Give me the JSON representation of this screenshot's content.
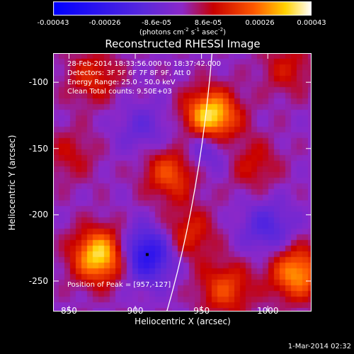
{
  "colorbar": {
    "ticks": [
      "-0.00043",
      "-0.00026",
      "-8.6e-05",
      "8.6e-05",
      "0.00026",
      "0.00043"
    ],
    "units_prefix": "(photons cm",
    "units_exp1": "-2",
    "units_mid": " s",
    "units_exp2": "-1",
    "units_mid2": " asec",
    "units_exp3": "-2",
    "units_suffix": ")",
    "range": [
      -0.00043,
      0.00043
    ]
  },
  "chart_data": {
    "type": "heatmap",
    "title": "Reconstructed RHESSI Image",
    "xlabel": "Heliocentric X (arcsec)",
    "ylabel": "Heliocentric Y (arcsec)",
    "xlim": [
      838,
      1033
    ],
    "ylim": [
      -273,
      -78
    ],
    "xticks": [
      "850",
      "900",
      "950",
      "1000"
    ],
    "yticks": [
      "-100",
      "-150",
      "-200",
      "-250"
    ],
    "xtick_values": [
      850,
      900,
      950,
      1000
    ],
    "ytick_values": [
      -100,
      -150,
      -200,
      -250
    ],
    "colormap": "blue-purple-red-yellow-white",
    "sources": [
      {
        "x": 957,
        "y": -127,
        "peak": 0.00043
      },
      {
        "x": 873,
        "y": -231,
        "peak": 0.00038
      },
      {
        "x": 927,
        "y": -168,
        "peak": 0.00022
      },
      {
        "x": 1022,
        "y": -244,
        "peak": 0.0003
      },
      {
        "x": 968,
        "y": -256,
        "peak": 0.0002
      },
      {
        "x": 868,
        "y": -96,
        "peak": 0.00015
      },
      {
        "x": 989,
        "y": -162,
        "peak": 0.00012
      },
      {
        "x": 940,
        "y": -215,
        "peak": 0.00016
      },
      {
        "x": 1015,
        "y": -90,
        "peak": 0.00012
      },
      {
        "x": 851,
        "y": -155,
        "peak": 0.0001
      },
      {
        "x": 909,
        "y": -230,
        "peak": -0.0003
      },
      {
        "x": 953,
        "y": -147,
        "peak": -0.00018
      },
      {
        "x": 1000,
        "y": -210,
        "peak": -0.00015
      },
      {
        "x": 906,
        "y": -135,
        "peak": -0.0001
      }
    ],
    "limb_marker": {
      "x": 909,
      "y": -230
    }
  },
  "annotations": {
    "time": "28-Feb-2014 18:33:56.000 to 18:37:42.000",
    "detectors": "Detectors: 3F 5F 6F 7F 8F 9F, Att 0",
    "energy": "Energy Range: 25.0 - 50.0 keV",
    "clean": "Clean     Total counts: 9.50E+03",
    "peak": "Position of Peak = [957,-127]"
  },
  "footer": {
    "date": "1-Mar-2014 02:32"
  }
}
